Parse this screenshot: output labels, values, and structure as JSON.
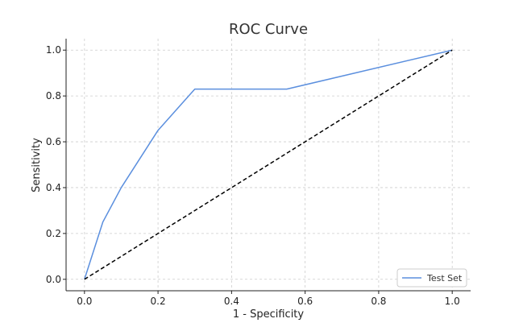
{
  "chart_data": {
    "type": "line",
    "title": "ROC Curve",
    "xlabel": "1 - Specificity",
    "ylabel": "Sensitivity",
    "xlim": [
      -0.05,
      1.05
    ],
    "ylim": [
      -0.05,
      1.05
    ],
    "xticks": [
      0.0,
      0.2,
      0.4,
      0.6,
      0.8,
      1.0
    ],
    "yticks": [
      0.0,
      0.2,
      0.4,
      0.6,
      0.8,
      1.0
    ],
    "xtick_labels": [
      "0.0",
      "0.2",
      "0.4",
      "0.6",
      "0.8",
      "1.0"
    ],
    "ytick_labels": [
      "0.0",
      "0.2",
      "0.4",
      "0.6",
      "0.8",
      "1.0"
    ],
    "grid": true,
    "legend_position": "bottom-right",
    "series": [
      {
        "name": "Test Set",
        "color": "#5b8fde",
        "style": "solid",
        "x": [
          0.0,
          0.05,
          0.1,
          0.2,
          0.3,
          0.55,
          1.0
        ],
        "y": [
          0.0,
          0.25,
          0.4,
          0.65,
          0.83,
          0.83,
          1.0
        ]
      },
      {
        "color": "#000000",
        "style": "dashed",
        "x": [
          0.0,
          1.0
        ],
        "y": [
          0.0,
          1.0
        ]
      }
    ]
  }
}
